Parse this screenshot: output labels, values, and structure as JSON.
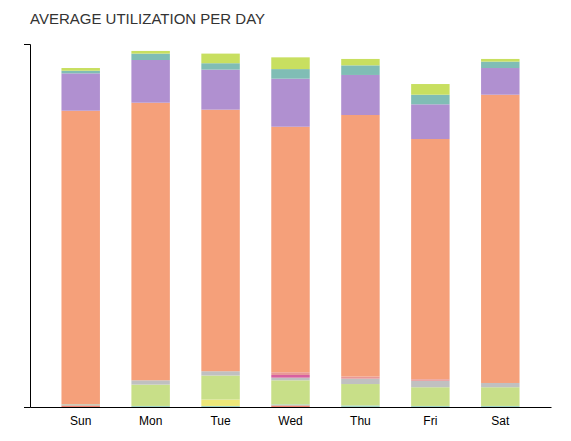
{
  "chart_data": {
    "type": "bar",
    "stacked": true,
    "title": "AVERAGE UTILIZATION PER DAY",
    "categories": [
      "Sun",
      "Mon",
      "Tue",
      "Wed",
      "Thu",
      "Fri",
      "Sat"
    ],
    "series": [
      {
        "color": "#f08070",
        "values": [
          0.3,
          0.0,
          0.0,
          0.3,
          0.0,
          0.0,
          0.0
        ]
      },
      {
        "color": "#a0d4c4",
        "values": [
          0.2,
          0.2,
          0.2,
          0.2,
          0.3,
          0.2,
          0.2
        ]
      },
      {
        "color": "#ece878",
        "values": [
          0.0,
          0.0,
          1.2,
          0.0,
          0.0,
          0.0,
          0.0
        ]
      },
      {
        "color": "#c8df88",
        "values": [
          0.0,
          4.0,
          4.5,
          4.5,
          4.0,
          3.5,
          3.5
        ]
      },
      {
        "color": "#c0c0c0",
        "values": [
          0.0,
          0.8,
          0.8,
          0.5,
          1.0,
          1.2,
          0.8
        ]
      },
      {
        "color": "#d860a0",
        "values": [
          0.0,
          0.0,
          0.0,
          0.5,
          0.0,
          0.0,
          0.0
        ]
      },
      {
        "color": "#e89898",
        "values": [
          0.0,
          0.0,
          0.0,
          0.5,
          0.4,
          0.3,
          0.0
        ]
      },
      {
        "color": "#f5a07a",
        "values": [
          55.0,
          52.0,
          49.0,
          46.0,
          49.0,
          45.0,
          54.0
        ]
      },
      {
        "color": "#b090d0",
        "values": [
          7.0,
          8.0,
          7.5,
          9.0,
          7.5,
          6.5,
          5.0
        ]
      },
      {
        "color": "#80bdb5",
        "values": [
          0.5,
          1.2,
          1.2,
          1.8,
          1.8,
          1.8,
          1.2
        ]
      },
      {
        "color": "#c8df60",
        "values": [
          0.5,
          0.5,
          1.8,
          2.2,
          1.2,
          2.0,
          0.5
        ]
      }
    ],
    "ylim": [
      0,
      68
    ],
    "yticks": [],
    "tick_labels": "x"
  }
}
